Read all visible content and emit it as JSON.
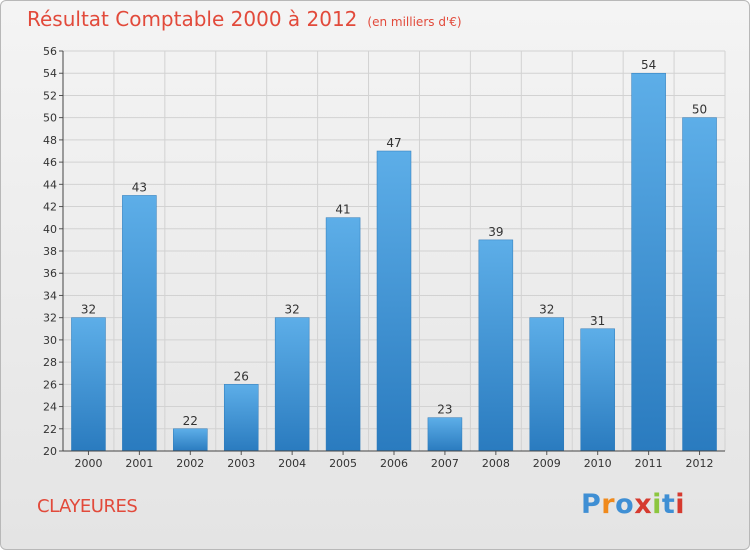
{
  "header": {
    "title": "Résultat Comptable 2000 à 2012",
    "subtitle": "(en milliers d'€)"
  },
  "footer": {
    "location": "CLAYEURES",
    "brand": "Proxiti",
    "brand_letters": [
      "P",
      "r",
      "o",
      "x",
      "i",
      "t",
      "i"
    ]
  },
  "colors": {
    "bar_light": "#5daee8",
    "bar_dark": "#2a7bbf",
    "title": "#e24a3b",
    "brand_letter_colors": [
      "#3f8fd4",
      "#f08a1c",
      "#3f8fd4",
      "#d63a2f",
      "#8cc63f",
      "#3f8fd4",
      "#d63a2f"
    ]
  },
  "chart_data": {
    "type": "bar",
    "title": "Résultat Comptable 2000 à 2012",
    "subtitle": "(en milliers d'€)",
    "xlabel": "",
    "ylabel": "",
    "categories": [
      "2000",
      "2001",
      "2002",
      "2003",
      "2004",
      "2005",
      "2006",
      "2007",
      "2008",
      "2009",
      "2010",
      "2011",
      "2012"
    ],
    "values": [
      32,
      43,
      22,
      26,
      32,
      41,
      47,
      23,
      39,
      32,
      31,
      54,
      50
    ],
    "ylim": [
      20,
      56
    ],
    "yticks": [
      20,
      22,
      24,
      26,
      28,
      30,
      32,
      34,
      36,
      38,
      40,
      42,
      44,
      46,
      48,
      50,
      52,
      54,
      56
    ],
    "grid": true,
    "legend": "none"
  }
}
